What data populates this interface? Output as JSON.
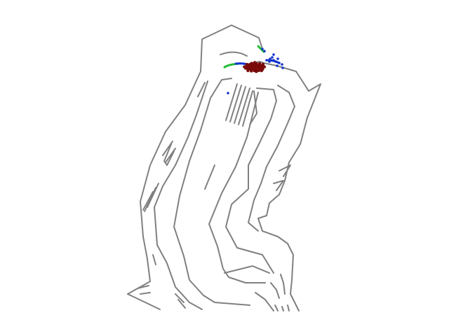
{
  "map": {
    "wall_color": "#808080",
    "background_color": "#ffffff"
  },
  "trails": [
    {
      "name": "trail-green-left",
      "color": "#22bb33"
    },
    {
      "name": "trail-blue-left",
      "color": "#1133cc"
    },
    {
      "name": "trail-green-top",
      "color": "#22bb33"
    },
    {
      "name": "trail-blue-top",
      "color": "#1133cc"
    }
  ],
  "points": {
    "blue_color": "#1133cc",
    "red_color": "#7a0a0a"
  }
}
